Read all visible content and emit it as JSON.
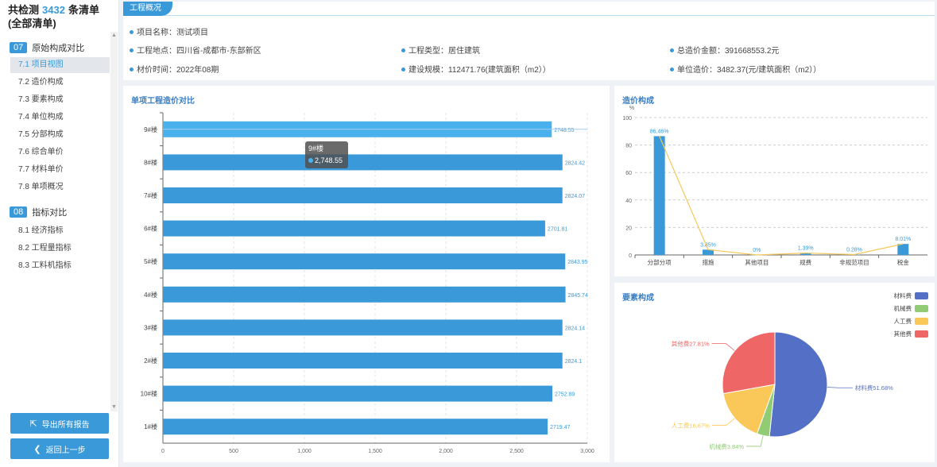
{
  "sidebar": {
    "header_prefix": "共检测",
    "header_count": "3432",
    "header_suffix": "条清单",
    "header_sub": "(全部清单)",
    "groups": [
      {
        "num": "07",
        "title": "原始构成对比"
      },
      {
        "num": "08",
        "title": "指标对比"
      }
    ],
    "items": [
      {
        "label": "7.1 项目视图",
        "active": true
      },
      {
        "label": "7.2 造价构成"
      },
      {
        "label": "7.3 要素构成"
      },
      {
        "label": "7.4 单位构成"
      },
      {
        "label": "7.5 分部构成"
      },
      {
        "label": "7.6 综合单价"
      },
      {
        "label": "7.7 材料单价"
      },
      {
        "label": "7.8 单项概况"
      },
      {
        "label": "8.1 经济指标"
      },
      {
        "label": "8.2 工程量指标"
      },
      {
        "label": "8.3 工料机指标"
      }
    ],
    "export_label": "导出所有报告",
    "back_label": "返回上一步"
  },
  "overview": {
    "tab": "工程概况",
    "project_name": "项目名称：测试项目",
    "location": "工程地点：四川省-成都市-东部新区",
    "project_type": "工程类型：居住建筑",
    "total_cost": "总造价金额：391668553.2元",
    "price_time": "材价时间：2022年08期",
    "scale": "建设规模：112471.76(建筑面积（m2））",
    "unit_cost": "单位造价：3482.37(元/建筑面积（m2））"
  },
  "colors": {
    "accent": "#3a9ad9",
    "bar": "#3a9ad9",
    "line": "#f5c95c",
    "pie_material": "#5470c6",
    "pie_machine": "#91cc75",
    "pie_labor": "#fac858",
    "pie_other": "#ee6666"
  },
  "chart_data": [
    {
      "type": "bar",
      "title": "单项工程造价对比",
      "orientation": "horizontal",
      "categories": [
        "9#楼",
        "8#楼",
        "7#楼",
        "6#楼",
        "5#楼",
        "4#楼",
        "3#楼",
        "2#楼",
        "10#楼",
        "1#楼"
      ],
      "values": [
        2748.55,
        2824.42,
        2824.07,
        2701.81,
        2843.95,
        2845.74,
        2824.14,
        2824.1,
        2752.89,
        2719.47
      ],
      "value_labels": [
        "2748.55",
        "2824.42",
        "2824.07",
        "2701.81",
        "2843.95",
        "2845.74",
        "2824.14",
        "2824.1",
        "2752.89",
        "2719.47"
      ],
      "xlim": [
        0,
        3000
      ],
      "x_ticks": [
        "0",
        "500",
        "1,000",
        "1,500",
        "2,000",
        "2,500",
        "3,000"
      ],
      "tooltip": {
        "category": "9#楼",
        "value": "2,748.55"
      }
    },
    {
      "type": "bar",
      "title": "造价构成",
      "ylabel": "%",
      "categories": [
        "分部分项",
        "措施",
        "其他项目",
        "规费",
        "非规范项目",
        "税金"
      ],
      "values": [
        86.46,
        3.85,
        0,
        1.39,
        0.28,
        8.01
      ],
      "value_labels": [
        "86.46%",
        "3.85%",
        "0%",
        "1.39%",
        "0.28%",
        "8.01%"
      ],
      "ylim": [
        0,
        100
      ],
      "y_ticks": [
        "0",
        "20",
        "40",
        "60",
        "80",
        "100"
      ],
      "overlay_line": true
    },
    {
      "type": "pie",
      "title": "要素构成",
      "legend": [
        "材料费",
        "机械费",
        "人工费",
        "其他费"
      ],
      "legend_position": "top-right",
      "values": [
        51.68,
        3.84,
        16.67,
        27.81
      ],
      "slice_labels": [
        "材料费51.68%",
        "机械费3.84%",
        "人工费16.67%",
        "其他费27.81%"
      ]
    }
  ]
}
